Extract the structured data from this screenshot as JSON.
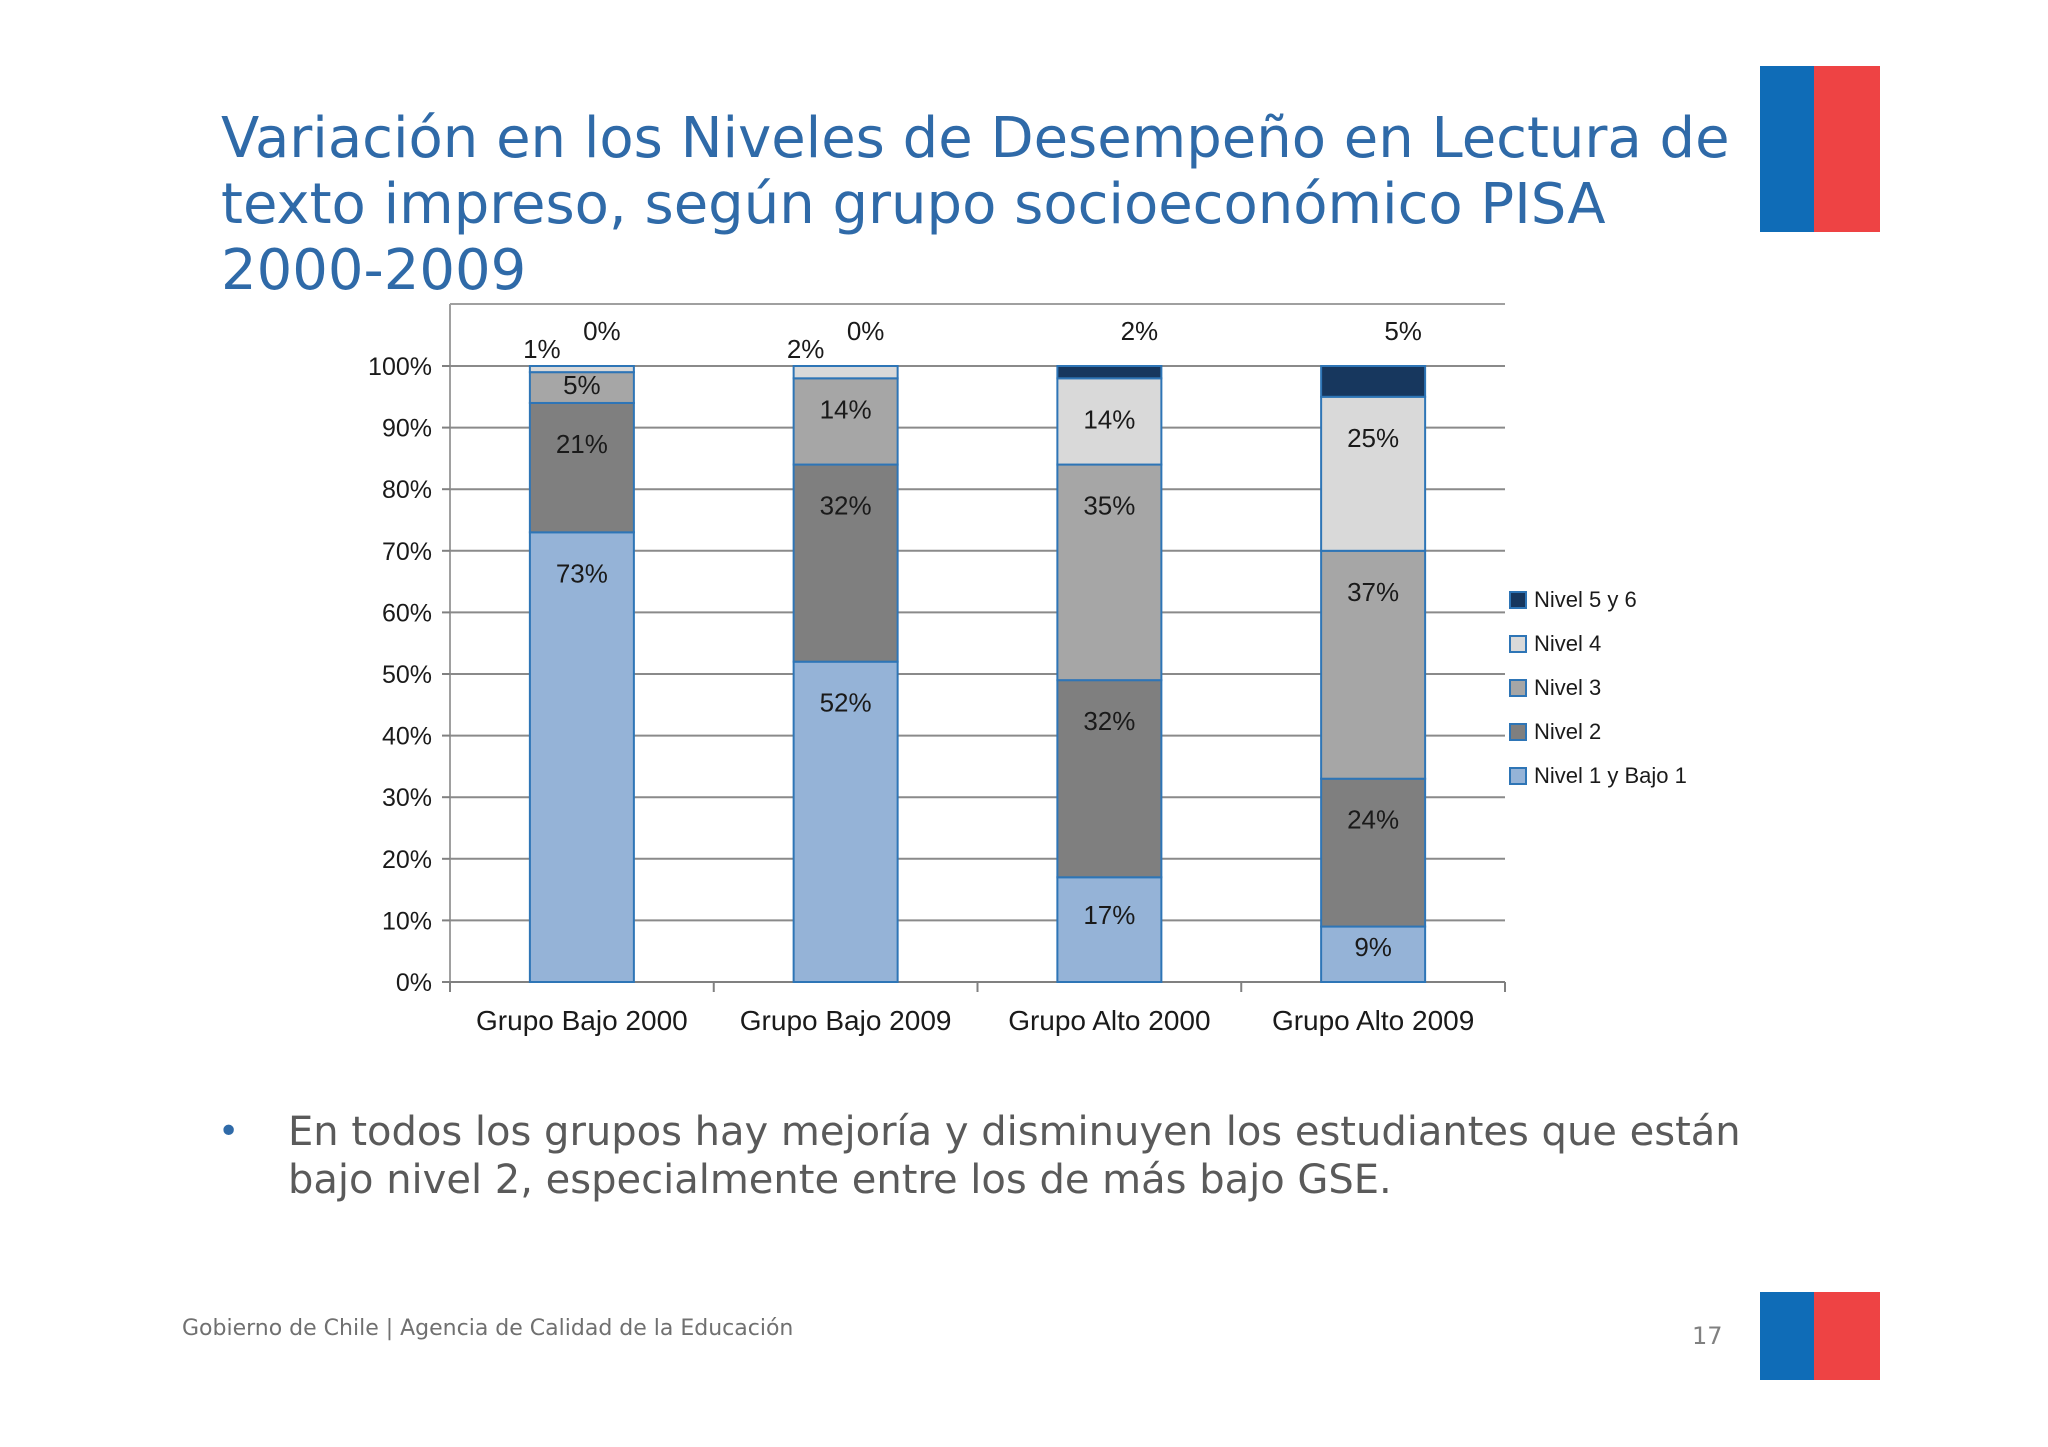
{
  "slide": {
    "title": "Variación en los Niveles de Desempeño en Lectura de texto impreso, según grupo socioeconómico PISA 2000-2009",
    "bullet": "En todos los grupos hay mejoría y disminuyen los estudiantes que están bajo nivel 2, especialmente entre los de más bajo GSE.",
    "bullet_symbol": "•",
    "footer": "Gobierno de Chile | Agencia de Calidad de la Educación",
    "page_number": "17",
    "flag_colors": {
      "blue": "#0f6cb7",
      "red": "#ee4344"
    },
    "title_color": "#2f6aa8"
  },
  "chart_data": {
    "type": "bar",
    "stacked": true,
    "categories": [
      "Grupo Bajo 2000",
      "Grupo Bajo 2009",
      "Grupo Alto 2000",
      "Grupo Alto 2009"
    ],
    "ylim": [
      0,
      100
    ],
    "yticks": [
      "0%",
      "10%",
      "20%",
      "30%",
      "40%",
      "50%",
      "60%",
      "70%",
      "80%",
      "90%",
      "100%"
    ],
    "grid": true,
    "legend_position": "right",
    "series": [
      {
        "name": "Nivel 1 y Bajo 1",
        "color": "#95b3d7",
        "values": [
          73,
          52,
          17,
          9
        ],
        "labels": [
          "73%",
          "52%",
          "17%",
          "9%"
        ]
      },
      {
        "name": "Nivel 2",
        "color": "#7f7f7f",
        "values": [
          21,
          32,
          32,
          24
        ],
        "labels": [
          "21%",
          "32%",
          "32%",
          "24%"
        ]
      },
      {
        "name": "Nivel 3",
        "color": "#a6a6a6",
        "values": [
          5,
          14,
          35,
          37
        ],
        "labels": [
          "5%",
          "14%",
          "35%",
          "37%"
        ]
      },
      {
        "name": "Nivel 4",
        "color": "#d9d9d9",
        "values": [
          1,
          2,
          14,
          25
        ],
        "labels": [
          "1%",
          "2%",
          "14%",
          "25%"
        ]
      },
      {
        "name": "Nivel 5 y 6",
        "color": "#17375e",
        "values": [
          0,
          0,
          2,
          5
        ],
        "labels": [
          "0%",
          "0%",
          "2%",
          "5%"
        ]
      }
    ]
  }
}
